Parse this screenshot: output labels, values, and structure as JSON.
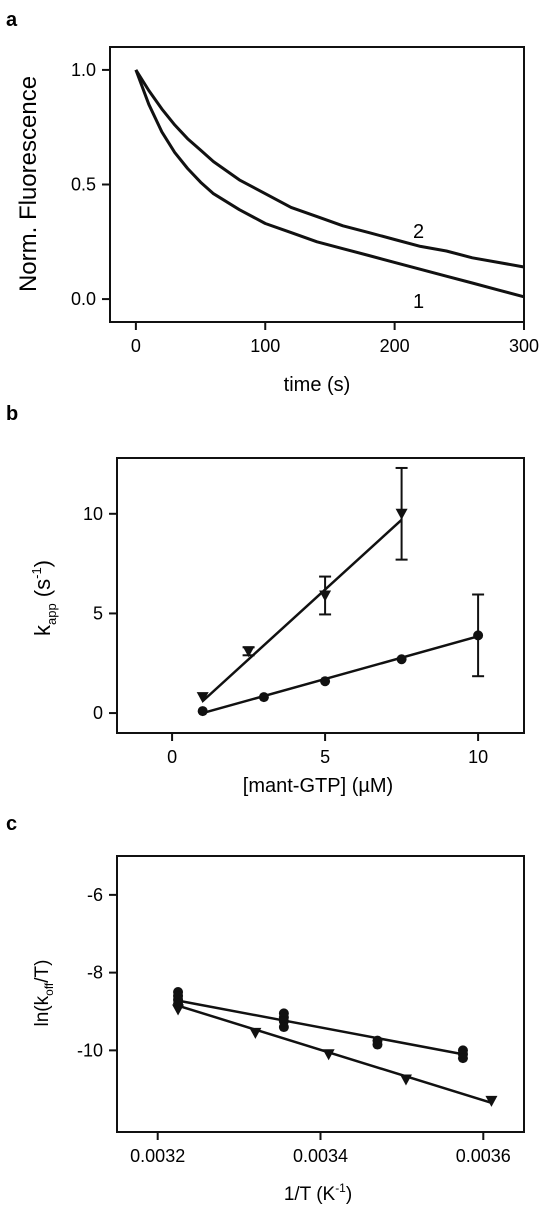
{
  "panels": [
    {
      "letter": "a"
    },
    {
      "letter": "b"
    },
    {
      "letter": "c"
    }
  ],
  "chart_data": [
    {
      "type": "line",
      "panel": "a",
      "xlabel": "time (s)",
      "ylabel": "Norm. Fluorescence",
      "xlim": [
        -20,
        300
      ],
      "ylim": [
        -0.1,
        1.1
      ],
      "xticks": [
        0,
        100,
        200,
        300
      ],
      "yticks": [
        0.0,
        0.5,
        1.0
      ],
      "ytick_labels": [
        "0.0",
        "0.5",
        "1.0"
      ],
      "grid": false,
      "series": [
        {
          "name": "1",
          "x": [
            0,
            10,
            20,
            30,
            40,
            50,
            60,
            80,
            100,
            120,
            140,
            160,
            180,
            200,
            220,
            240,
            260,
            280,
            300
          ],
          "y": [
            1.0,
            0.85,
            0.73,
            0.64,
            0.57,
            0.51,
            0.46,
            0.39,
            0.33,
            0.29,
            0.25,
            0.22,
            0.19,
            0.16,
            0.13,
            0.1,
            0.07,
            0.04,
            0.01
          ]
        },
        {
          "name": "2",
          "x": [
            0,
            10,
            20,
            30,
            40,
            50,
            60,
            80,
            100,
            120,
            140,
            160,
            180,
            200,
            220,
            240,
            260,
            280,
            300
          ],
          "y": [
            1.0,
            0.91,
            0.83,
            0.76,
            0.7,
            0.65,
            0.6,
            0.52,
            0.46,
            0.4,
            0.36,
            0.32,
            0.29,
            0.26,
            0.23,
            0.21,
            0.18,
            0.16,
            0.14
          ]
        }
      ]
    },
    {
      "type": "scatter",
      "panel": "b",
      "xlabel": "[mant-GTP] (µM)",
      "ylabel_main": "k",
      "ylabel_sub": "app",
      "ylabel_unit_open": "(s",
      "ylabel_unit_sup": "-1",
      "ylabel_unit_close": ")",
      "xlim": [
        -1.8,
        11.5
      ],
      "ylim": [
        -1.0,
        12.8
      ],
      "xticks": [
        0,
        5,
        10
      ],
      "yticks": [
        0,
        5,
        10
      ],
      "grid": false,
      "series": [
        {
          "marker": "triangle-down",
          "x": [
            1,
            2.5,
            5,
            7.5
          ],
          "y": [
            0.8,
            3.1,
            5.9,
            10.0
          ],
          "yerr": [
            0,
            0.2,
            0.95,
            2.3
          ],
          "fit": {
            "x": [
              1,
              7.5
            ],
            "y": [
              0.6,
              9.7
            ]
          }
        },
        {
          "marker": "circle",
          "x": [
            1,
            3,
            5,
            7.5,
            10
          ],
          "y": [
            0.1,
            0.8,
            1.6,
            2.7,
            3.9
          ],
          "yerr": [
            0,
            0,
            0,
            0,
            2.05
          ],
          "fit": {
            "x": [
              1,
              10
            ],
            "y": [
              0.0,
              3.85
            ]
          }
        }
      ]
    },
    {
      "type": "scatter",
      "panel": "c",
      "xlabel_main": "1/T (K",
      "xlabel_sup": "-1",
      "xlabel_close": ")",
      "ylabel_main": "ln(k",
      "ylabel_sub": "off",
      "ylabel_close": "/T)",
      "xlim": [
        0.00315,
        0.00365
      ],
      "ylim": [
        -12.1,
        -5.0
      ],
      "xticks": [
        0.0032,
        0.0034,
        0.0036
      ],
      "xtick_labels": [
        "0.0032",
        "0.0034",
        "0.0036"
      ],
      "yticks": [
        -10,
        -8,
        -6
      ],
      "grid": false,
      "series": [
        {
          "marker": "circle",
          "x": [
            0.003225,
            0.003225,
            0.003225,
            0.003225,
            0.003355,
            0.003355,
            0.003355,
            0.003355,
            0.00347,
            0.00347,
            0.003575,
            0.003575,
            0.003575
          ],
          "y": [
            -8.5,
            -8.6,
            -8.7,
            -8.8,
            -9.05,
            -9.15,
            -9.25,
            -9.4,
            -9.75,
            -9.85,
            -10.0,
            -10.1,
            -10.2
          ],
          "fit": {
            "x": [
              0.003225,
              0.003575
            ],
            "y": [
              -8.72,
              -10.1
            ]
          }
        },
        {
          "marker": "triangle-down",
          "x": [
            0.003225,
            0.00332,
            0.00341,
            0.003505,
            0.00361
          ],
          "y": [
            -8.95,
            -9.55,
            -10.1,
            -10.75,
            -11.3
          ],
          "fit": {
            "x": [
              0.003225,
              0.00361
            ],
            "y": [
              -8.85,
              -11.35
            ]
          }
        }
      ]
    }
  ]
}
